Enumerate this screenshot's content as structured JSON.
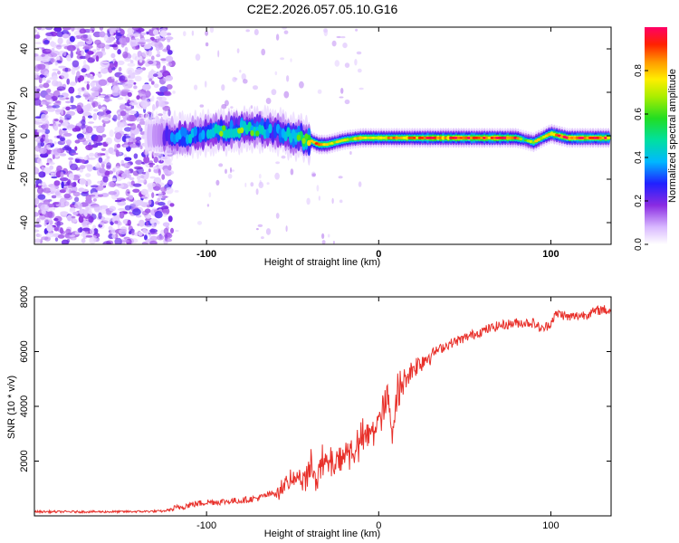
{
  "page_title": "C2E2.2026.057.05.10.G16",
  "chart_data": [
    {
      "type": "heatmap",
      "name": "spectrogram",
      "xlabel": "Height of straight line (km)",
      "ylabel": "Frequency (Hz)",
      "xlim": [
        -200,
        135
      ],
      "ylim": [
        -50,
        50
      ],
      "x_ticks": [
        -100,
        0,
        100
      ],
      "x_tick_labels": [
        "-100",
        "0",
        "100"
      ],
      "y_ticks": [
        40,
        20,
        0,
        -20,
        -40
      ],
      "y_tick_labels": [
        "40",
        "20",
        "0",
        "-20",
        "-40"
      ],
      "grid": false,
      "ridge": {
        "heights": [
          -135,
          -120,
          -110,
          -100,
          -90,
          -80,
          -70,
          -60,
          -50,
          -40,
          -35,
          -30,
          -25,
          -20,
          -10,
          0,
          10,
          20,
          30,
          40,
          50,
          60,
          70,
          80,
          85,
          90,
          95,
          100,
          110,
          120,
          135
        ],
        "frequency": [
          0,
          0,
          0,
          1,
          2,
          3,
          3,
          2,
          0,
          -2,
          -4,
          -4,
          -3,
          -2,
          -1,
          -1,
          -1,
          -1,
          -1,
          -1,
          -1,
          -1,
          -1,
          -1,
          -2,
          -3,
          -1,
          1,
          -1,
          -1,
          -1
        ],
        "amplitude": [
          0.2,
          0.45,
          0.5,
          0.5,
          0.6,
          0.6,
          0.55,
          0.5,
          0.6,
          0.7,
          0.85,
          0.75,
          0.7,
          0.7,
          0.8,
          0.8,
          0.8,
          0.8,
          0.9,
          0.9,
          0.9,
          0.9,
          0.9,
          0.85,
          0.55,
          0.7,
          0.7,
          0.85,
          0.9,
          0.9,
          0.9
        ]
      },
      "noise_region": [
        -200,
        -120
      ],
      "colorbar": {
        "label": "Normalized spectral amplitude",
        "range": [
          0,
          1
        ],
        "ticks": [
          0.0,
          0.2,
          0.4,
          0.6,
          0.8
        ],
        "tick_labels": [
          "0.0",
          "0.2",
          "0.4",
          "0.6",
          "0.8"
        ]
      }
    },
    {
      "type": "line",
      "name": "snr",
      "xlabel": "Height of straight line (km)",
      "ylabel": "SNR (10 * v/v)",
      "xlim": [
        -200,
        135
      ],
      "ylim": [
        0,
        8000
      ],
      "x_ticks": [
        -100,
        0,
        100
      ],
      "x_tick_labels": [
        "-100",
        "0",
        "100"
      ],
      "y_ticks": [
        2000,
        4000,
        6000,
        8000
      ],
      "y_tick_labels": [
        "2000",
        "4000",
        "6000",
        "8000"
      ],
      "grid": false,
      "series": [
        {
          "name": "SNR",
          "color": "#e8302a",
          "x": [
            -200,
            -150,
            -125,
            -110,
            -100,
            -90,
            -80,
            -70,
            -60,
            -50,
            -40,
            -35,
            -30,
            -25,
            -20,
            -15,
            -10,
            -5,
            0,
            3,
            5,
            8,
            10,
            15,
            20,
            25,
            30,
            40,
            50,
            60,
            70,
            80,
            90,
            95,
            100,
            102,
            105,
            110,
            120,
            130,
            135
          ],
          "y": [
            150,
            150,
            170,
            400,
            500,
            520,
            560,
            650,
            850,
            1300,
            1600,
            1750,
            1900,
            2050,
            2250,
            2400,
            2700,
            3000,
            3500,
            3800,
            4300,
            3000,
            4400,
            5000,
            5400,
            5650,
            5900,
            6250,
            6500,
            6750,
            6950,
            7050,
            7050,
            6800,
            7050,
            7300,
            7400,
            7250,
            7350,
            7550,
            7450
          ]
        }
      ],
      "colors": {
        "line": "#e8302a"
      }
    }
  ]
}
